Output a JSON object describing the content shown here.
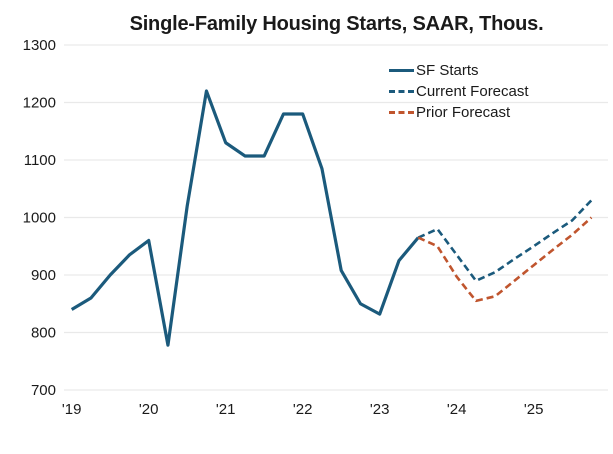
{
  "title": "Single-Family Housing Starts, SAAR, Thous.",
  "colors": {
    "actual_line": "#1b5a7c",
    "current_forecast_line": "#1b5a7c",
    "prior_forecast_line": "#c0552e",
    "gridline": "#e9e9e9",
    "text": "#1a1a1a",
    "background": "#ffffff"
  },
  "chart_data": {
    "type": "line",
    "title": "Single-Family Housing Starts, SAAR, Thous.",
    "xlabel": "",
    "ylabel": "",
    "ylim": [
      700,
      1300
    ],
    "yticks": [
      1300,
      1200,
      1100,
      1000,
      900,
      800,
      700
    ],
    "xtick_labels": [
      "'19",
      "'20",
      "'21",
      "'22",
      "'23",
      "'24",
      "'25"
    ],
    "xtick_years": [
      2019,
      2020,
      2021,
      2022,
      2023,
      2024,
      2025
    ],
    "x_unit": "quarters as decimal years",
    "grid": "horizontal",
    "legend_position": "top-right-inside",
    "series": [
      {
        "name": "SF Starts",
        "style": "solid",
        "color": "#1b5a7c",
        "x": [
          2019.0,
          2019.25,
          2019.5,
          2019.75,
          2020.0,
          2020.25,
          2020.5,
          2020.75,
          2021.0,
          2021.25,
          2021.5,
          2021.75,
          2022.0,
          2022.25,
          2022.5,
          2022.75,
          2023.0,
          2023.25,
          2023.5
        ],
        "values": [
          840,
          860,
          900,
          935,
          960,
          778,
          1020,
          1220,
          1130,
          1107,
          1107,
          1180,
          1180,
          1085,
          908,
          850,
          832,
          925,
          965
        ]
      },
      {
        "name": "Current Forecast",
        "style": "dashed",
        "color": "#1b5a7c",
        "x": [
          2023.5,
          2023.75,
          2024.0,
          2024.25,
          2024.5,
          2024.75,
          2025.0,
          2025.25,
          2025.5,
          2025.75
        ],
        "values": [
          965,
          980,
          935,
          890,
          905,
          928,
          950,
          973,
          995,
          1030
        ]
      },
      {
        "name": "Prior Forecast",
        "style": "dashed",
        "color": "#c0552e",
        "x": [
          2023.5,
          2023.75,
          2024.0,
          2024.25,
          2024.5,
          2024.75,
          2025.0,
          2025.25,
          2025.5,
          2025.75
        ],
        "values": [
          965,
          950,
          897,
          855,
          863,
          890,
          917,
          944,
          970,
          1000
        ]
      }
    ]
  }
}
